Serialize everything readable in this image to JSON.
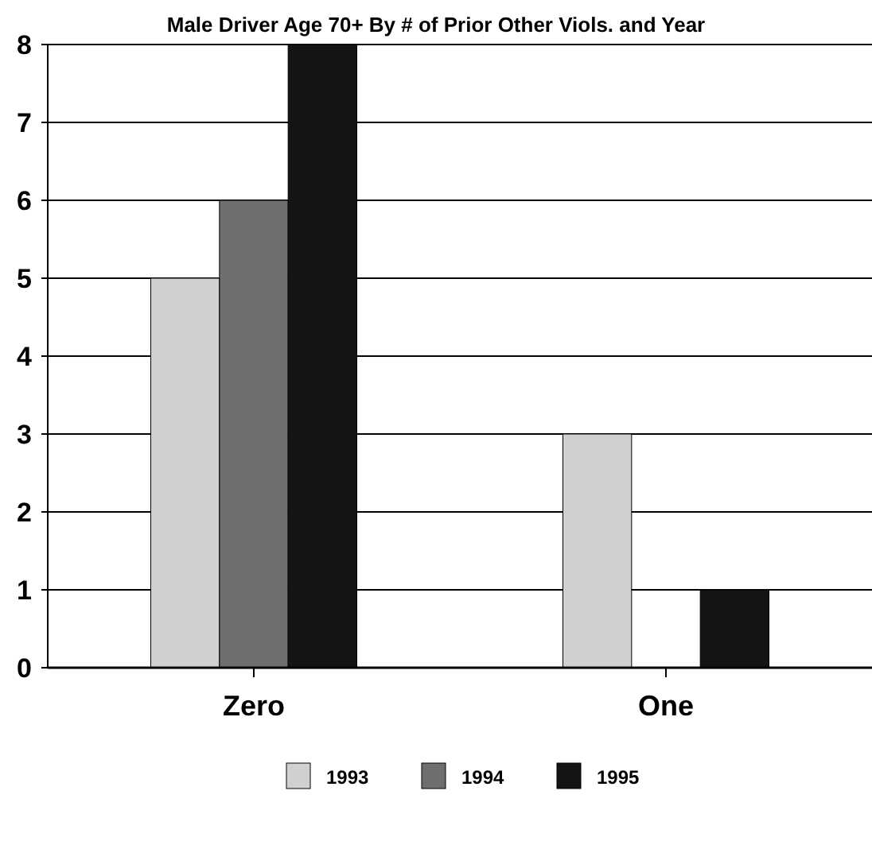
{
  "chart_data": {
    "type": "bar",
    "title": "Male Driver Age 70+ By # of Prior Other Viols. and Year",
    "categories": [
      "Zero",
      "One"
    ],
    "series": [
      {
        "name": "1993",
        "color": "#d0d0d0",
        "values": [
          5,
          3
        ]
      },
      {
        "name": "1994",
        "color": "#6e6e6e",
        "values": [
          6,
          0
        ]
      },
      {
        "name": "1995",
        "color": "#141414",
        "values": [
          8,
          1
        ]
      }
    ],
    "ylim": [
      0,
      8
    ],
    "yticks": [
      0,
      1,
      2,
      3,
      4,
      5,
      6,
      7,
      8
    ],
    "grid": "y",
    "legend": "bottom"
  }
}
